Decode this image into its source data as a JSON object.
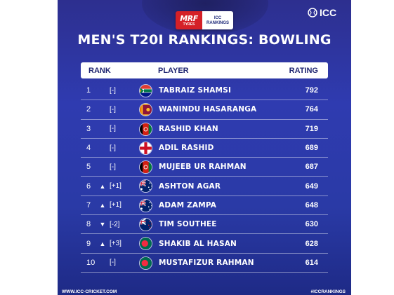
{
  "sponsor": {
    "brand": "MRF",
    "brand_sub": "TYRES",
    "partner_line1": "ICC",
    "partner_line2": "RANKINGS"
  },
  "logo": {
    "text": "ICC",
    "icon": "icc-ball-icon"
  },
  "title": "MEN'S T20I RANKINGS: BOWLING",
  "columns": {
    "rank": "RANK",
    "player": "PLAYER",
    "rating": "RATING"
  },
  "rows": [
    {
      "rank": "1",
      "arrow": "",
      "move": "[-]",
      "flag": "south-africa-flag-icon",
      "player": "TABRAIZ SHAMSI",
      "rating": "792"
    },
    {
      "rank": "2",
      "arrow": "",
      "move": "[-]",
      "flag": "sri-lanka-flag-icon",
      "player": "WANINDU HASARANGA",
      "rating": "764"
    },
    {
      "rank": "3",
      "arrow": "",
      "move": "[-]",
      "flag": "afghanistan-flag-icon",
      "player": "RASHID KHAN",
      "rating": "719"
    },
    {
      "rank": "4",
      "arrow": "",
      "move": "[-]",
      "flag": "england-flag-icon",
      "player": "ADIL RASHID",
      "rating": "689"
    },
    {
      "rank": "5",
      "arrow": "",
      "move": "[-]",
      "flag": "afghanistan-flag-icon",
      "player": "MUJEEB UR RAHMAN",
      "rating": "687"
    },
    {
      "rank": "6",
      "arrow": "▲",
      "move": "[+1]",
      "flag": "australia-flag-icon",
      "player": "ASHTON AGAR",
      "rating": "649"
    },
    {
      "rank": "7",
      "arrow": "▲",
      "move": "[+1]",
      "flag": "australia-flag-icon",
      "player": "ADAM ZAMPA",
      "rating": "648"
    },
    {
      "rank": "8",
      "arrow": "▼",
      "move": "[-2]",
      "flag": "new-zealand-flag-icon",
      "player": "TIM SOUTHEE",
      "rating": "630"
    },
    {
      "rank": "9",
      "arrow": "▲",
      "move": "[+3]",
      "flag": "bangladesh-flag-icon",
      "player": "SHAKIB AL HASAN",
      "rating": "628"
    },
    {
      "rank": "10",
      "arrow": "",
      "move": "[-]",
      "flag": "bangladesh-flag-icon",
      "player": "MUSTAFIZUR RAHMAN",
      "rating": "614"
    }
  ],
  "footer": {
    "website": "WWW.ICC-CRICKET.COM",
    "hashtag": "#ICCRANKINGS"
  },
  "colors": {
    "background": "#2f3bb0",
    "header_bg": "#ffffff",
    "header_text": "#1e2470",
    "sponsor_red": "#d52027"
  }
}
